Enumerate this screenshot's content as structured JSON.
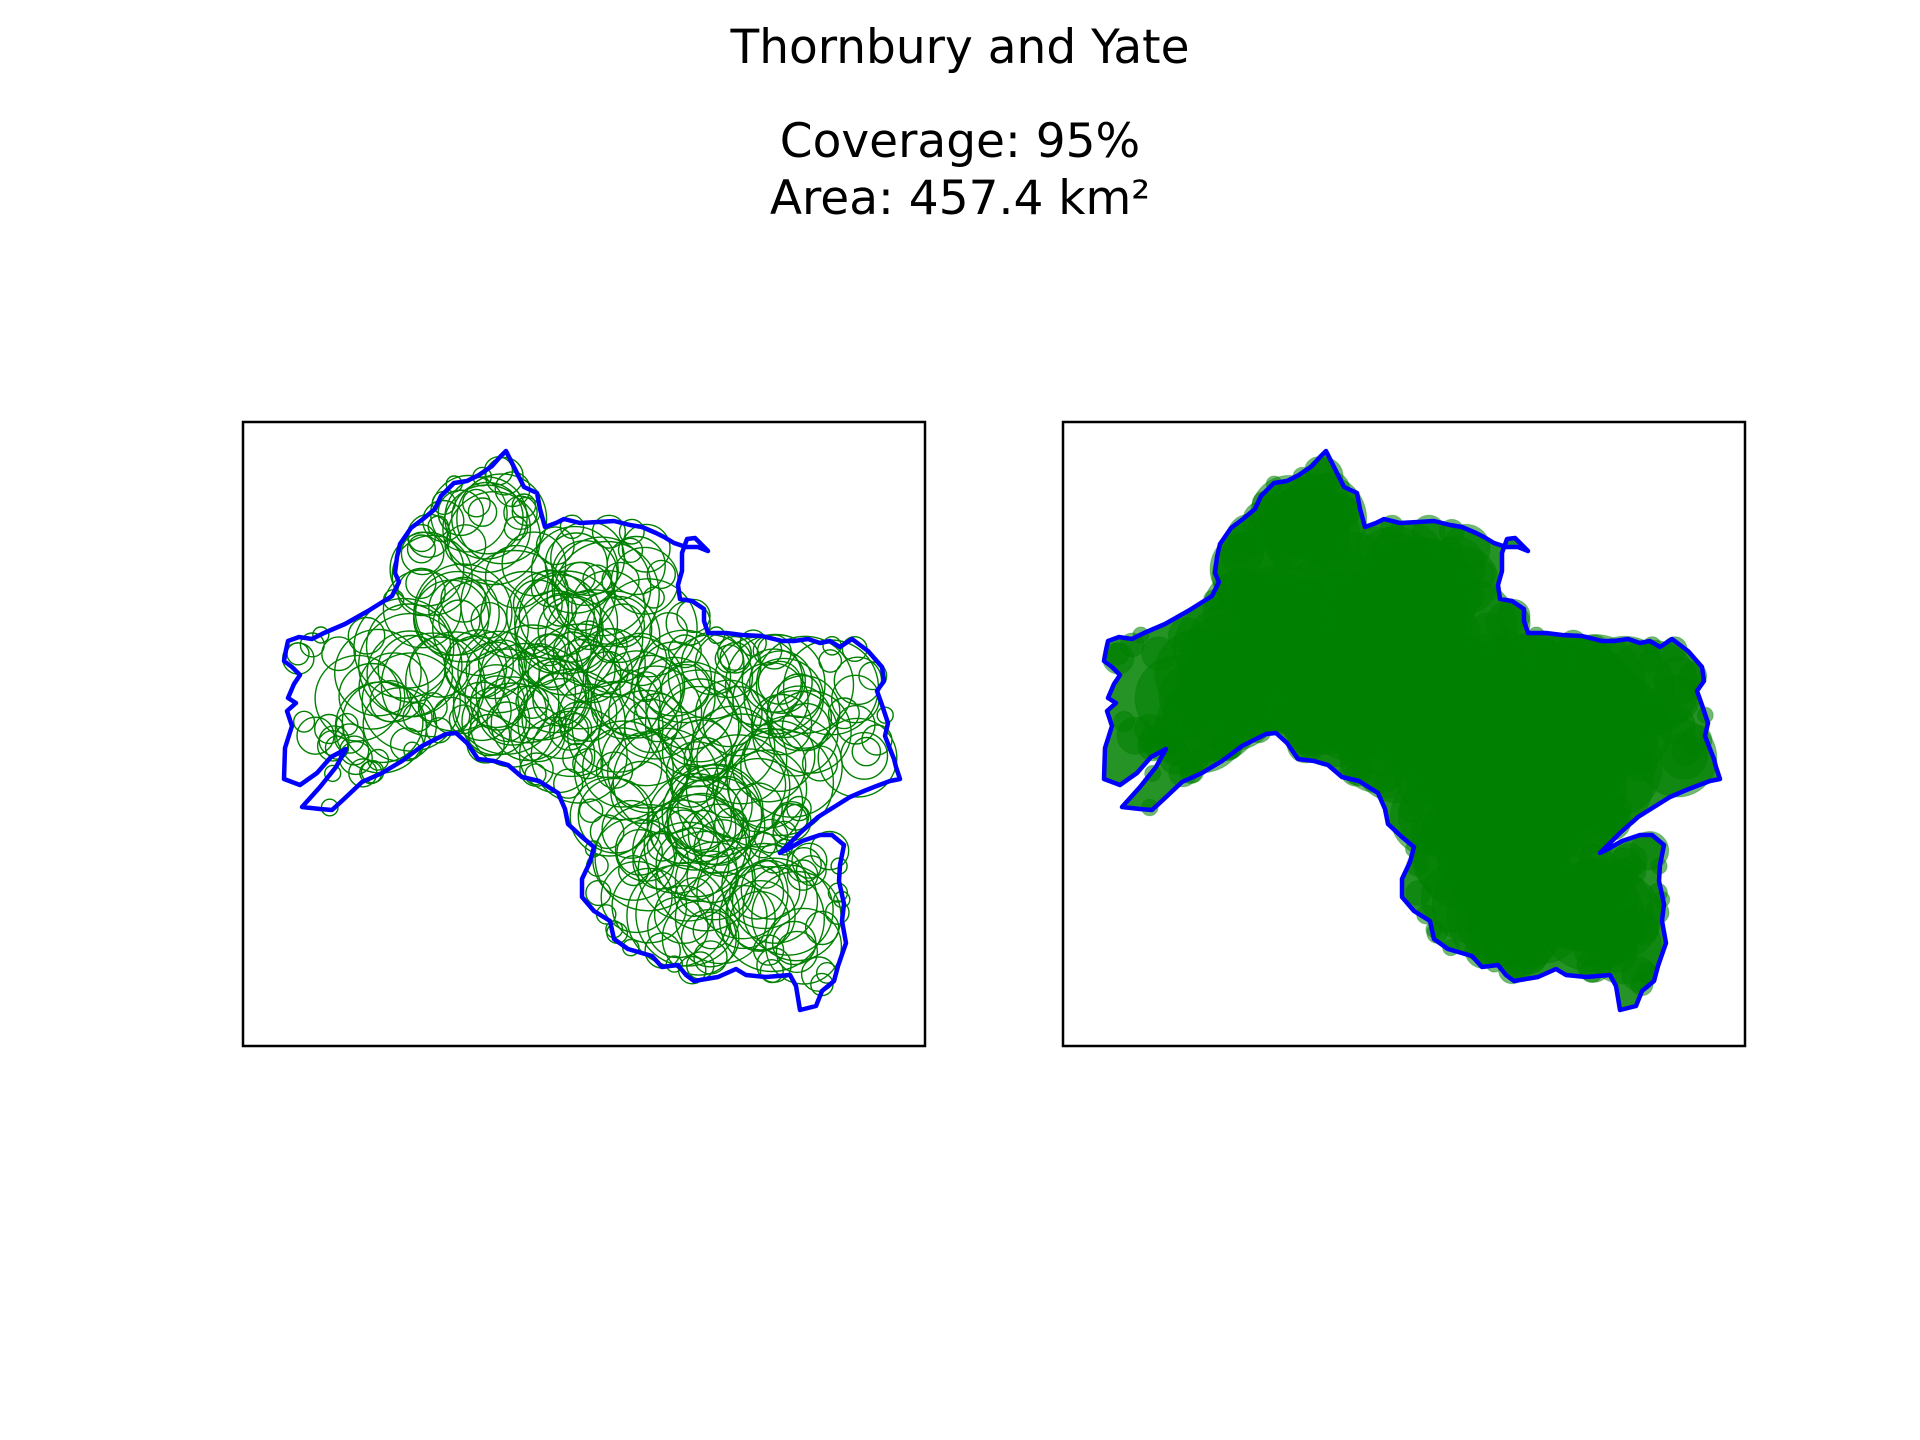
{
  "figure": {
    "title": "Thornbury and Yate",
    "coverage_label": "Coverage: 95%",
    "area_label": "Area: 457.4 km²"
  },
  "chart_data": {
    "type": "map",
    "region": "Thornbury and Yate",
    "coverage_percent": 95,
    "area_km2": 457.4,
    "panels": [
      {
        "style": "circle outlines",
        "boundary_color": "#0000ff",
        "circle_color": "#008000"
      },
      {
        "style": "filled circles",
        "boundary_color": "#0000ff",
        "circle_color": "#008000"
      }
    ]
  }
}
